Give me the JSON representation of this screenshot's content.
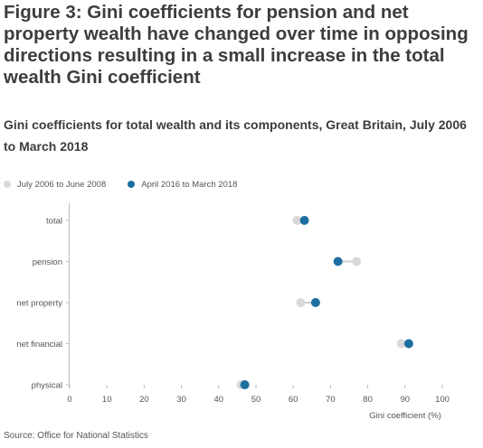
{
  "figure_title": "Figure 3: Gini coefficients for pension and net property wealth have changed over time in opposing directions resulting in a small increase in the total wealth Gini coefficient",
  "subtitle": "Gini coefficients for total wealth and its components, Great Britain, July 2006 to March 2018",
  "source": "Source: Office for National Statistics",
  "colors": {
    "series_1": "#d9d9d9",
    "series_2": "#1d6fa0",
    "connector": "#cfcfcf",
    "axis": "#bdbdbd",
    "text": "#555555"
  },
  "chart_data": {
    "type": "scatter",
    "subtype": "dot-plot",
    "categories": [
      "total",
      "pension",
      "net property",
      "net financial",
      "physical"
    ],
    "series": [
      {
        "name": "July 2006 to June 2008",
        "values": [
          61,
          77,
          62,
          89,
          46
        ]
      },
      {
        "name": "April 2016 to March 2018",
        "values": [
          63,
          72,
          66,
          91,
          47
        ]
      }
    ],
    "xlabel": "Gini coefficient (%)",
    "ylabel": "",
    "xlim": [
      0,
      100
    ],
    "xticks": [
      0,
      10,
      20,
      30,
      40,
      50,
      60,
      70,
      80,
      90,
      100
    ],
    "grid": false,
    "legend_position": "top-left"
  }
}
